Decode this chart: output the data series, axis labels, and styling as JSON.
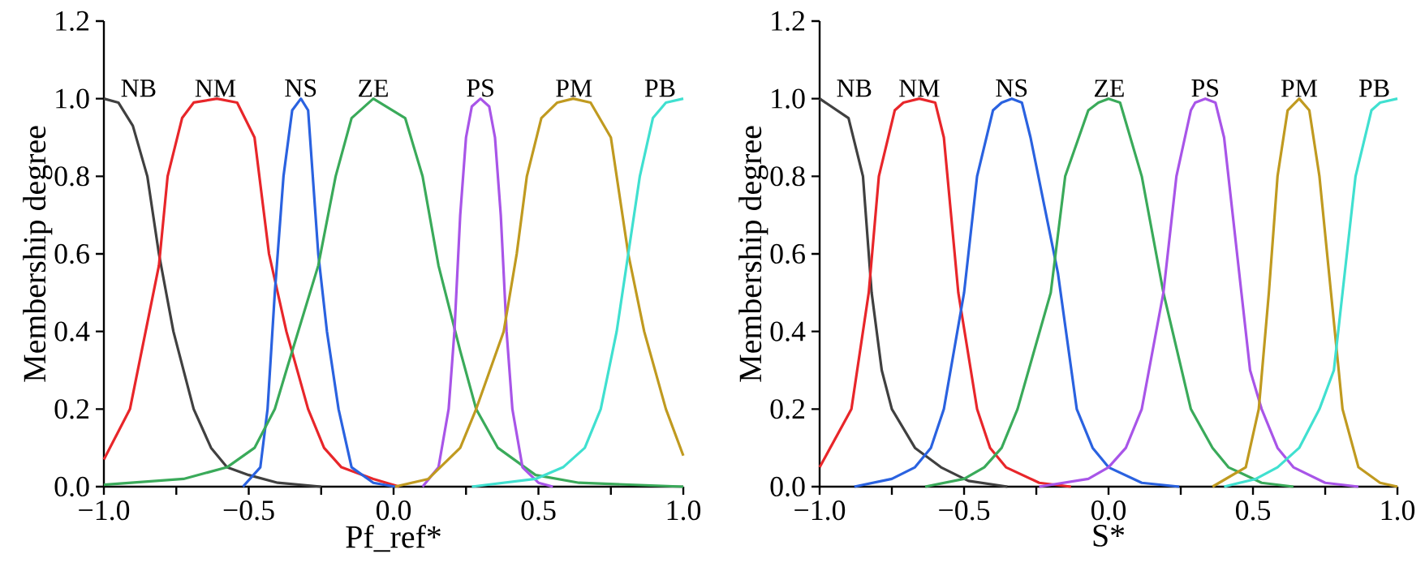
{
  "chart_data": [
    {
      "type": "line",
      "xlabel": "Pf_ref*",
      "ylabel": "Membership degree",
      "xlim": [
        -1.0,
        1.0
      ],
      "ylim": [
        0.0,
        1.2
      ],
      "xticks": [
        {
          "value": -1.0,
          "label": "−1.0"
        },
        {
          "value": -0.75,
          "label": null
        },
        {
          "value": -0.5,
          "label": "−0.5"
        },
        {
          "value": -0.25,
          "label": null
        },
        {
          "value": 0.0,
          "label": "0.0"
        },
        {
          "value": 0.25,
          "label": null
        },
        {
          "value": 0.5,
          "label": "0.5"
        },
        {
          "value": 0.75,
          "label": null
        },
        {
          "value": 1.0,
          "label": "1.0"
        }
      ],
      "yticks": [
        {
          "value": 0.0,
          "label": "0.0"
        },
        {
          "value": 0.2,
          "label": "0.2"
        },
        {
          "value": 0.4,
          "label": "0.4"
        },
        {
          "value": 0.6,
          "label": "0.6"
        },
        {
          "value": 0.8,
          "label": "0.8"
        },
        {
          "value": 1.0,
          "label": "1.0"
        },
        {
          "value": 1.2,
          "label": "1.2"
        }
      ],
      "series": [
        {
          "name": "NB",
          "color": "#404040",
          "x": [
            -1.0,
            -0.95,
            -0.9,
            -0.85,
            -0.81,
            -0.76,
            -0.69,
            -0.63,
            -0.575,
            -0.5,
            -0.4,
            -0.25
          ],
          "values": [
            1.0,
            0.99,
            0.93,
            0.8,
            0.6,
            0.4,
            0.2,
            0.1,
            0.05,
            0.03,
            0.01,
            0.0
          ]
        },
        {
          "name": "NM",
          "color": "#e8262a",
          "x": [
            -1.0,
            -0.91,
            -0.81,
            -0.78,
            -0.73,
            -0.69,
            -0.61,
            -0.54,
            -0.48,
            -0.43,
            -0.37,
            -0.295,
            -0.24,
            -0.18,
            -0.07,
            0.02
          ],
          "values": [
            0.07,
            0.2,
            0.57,
            0.8,
            0.95,
            0.99,
            1.0,
            0.99,
            0.9,
            0.6,
            0.4,
            0.2,
            0.1,
            0.05,
            0.02,
            0.0
          ]
        },
        {
          "name": "NS",
          "color": "#2a62e0",
          "x": [
            -0.52,
            -0.46,
            -0.435,
            -0.41,
            -0.38,
            -0.35,
            -0.32,
            -0.295,
            -0.26,
            -0.23,
            -0.19,
            -0.145,
            -0.07,
            0.005
          ],
          "values": [
            0.0,
            0.05,
            0.2,
            0.5,
            0.8,
            0.97,
            1.0,
            0.97,
            0.6,
            0.4,
            0.2,
            0.05,
            0.01,
            0.0
          ]
        },
        {
          "name": "ZE",
          "color": "#3aaa5a",
          "x": [
            -1.0,
            -0.725,
            -0.575,
            -0.48,
            -0.41,
            -0.37,
            -0.26,
            -0.2,
            -0.145,
            -0.07,
            0.04,
            0.1,
            0.155,
            0.23,
            0.285,
            0.36,
            0.49,
            0.64,
            1.0
          ],
          "values": [
            0.005,
            0.02,
            0.05,
            0.1,
            0.2,
            0.3,
            0.57,
            0.8,
            0.95,
            1.0,
            0.95,
            0.8,
            0.57,
            0.35,
            0.2,
            0.1,
            0.03,
            0.01,
            0.0
          ]
        },
        {
          "name": "PS",
          "color": "#a855e8",
          "x": [
            0.1,
            0.155,
            0.19,
            0.21,
            0.23,
            0.25,
            0.27,
            0.3,
            0.33,
            0.35,
            0.37,
            0.39,
            0.41,
            0.445,
            0.5,
            0.55
          ],
          "values": [
            0.0,
            0.05,
            0.2,
            0.4,
            0.7,
            0.9,
            0.98,
            1.0,
            0.98,
            0.9,
            0.7,
            0.4,
            0.2,
            0.05,
            0.01,
            0.0
          ]
        },
        {
          "name": "PM",
          "color": "#c09a20",
          "x": [
            0.005,
            0.12,
            0.23,
            0.285,
            0.38,
            0.425,
            0.46,
            0.51,
            0.565,
            0.62,
            0.68,
            0.75,
            0.81,
            0.865,
            0.94,
            1.0
          ],
          "values": [
            0.0,
            0.02,
            0.1,
            0.2,
            0.4,
            0.6,
            0.8,
            0.95,
            0.99,
            1.0,
            0.99,
            0.9,
            0.6,
            0.4,
            0.2,
            0.08
          ]
        },
        {
          "name": "PB",
          "color": "#40e0d0",
          "x": [
            0.27,
            0.49,
            0.585,
            0.66,
            0.715,
            0.77,
            0.81,
            0.85,
            0.895,
            0.94,
            1.0
          ],
          "values": [
            0.0,
            0.02,
            0.05,
            0.1,
            0.2,
            0.4,
            0.6,
            0.8,
            0.95,
            0.99,
            1.0
          ]
        }
      ]
    },
    {
      "type": "line",
      "xlabel": "S*",
      "ylabel": "Membership degree",
      "xlim": [
        -1.0,
        1.0
      ],
      "ylim": [
        0.0,
        1.2
      ],
      "xticks": [
        {
          "value": -1.0,
          "label": "−1.0"
        },
        {
          "value": -0.75,
          "label": null
        },
        {
          "value": -0.5,
          "label": "−0.5"
        },
        {
          "value": -0.25,
          "label": null
        },
        {
          "value": 0.0,
          "label": "0.0"
        },
        {
          "value": 0.25,
          "label": null
        },
        {
          "value": 0.5,
          "label": "0.5"
        },
        {
          "value": 0.75,
          "label": null
        },
        {
          "value": 1.0,
          "label": "1.0"
        }
      ],
      "yticks": [
        {
          "value": 0.0,
          "label": "0.0"
        },
        {
          "value": 0.2,
          "label": "0.2"
        },
        {
          "value": 0.4,
          "label": "0.4"
        },
        {
          "value": 0.6,
          "label": "0.6"
        },
        {
          "value": 0.8,
          "label": "0.8"
        },
        {
          "value": 1.0,
          "label": "1.0"
        },
        {
          "value": 1.2,
          "label": "1.2"
        }
      ],
      "series": [
        {
          "name": "NB",
          "color": "#404040",
          "x": [
            -1.0,
            -0.9,
            -0.85,
            -0.82,
            -0.785,
            -0.75,
            -0.67,
            -0.58,
            -0.485,
            -0.35
          ],
          "values": [
            1.0,
            0.95,
            0.8,
            0.5,
            0.3,
            0.2,
            0.1,
            0.05,
            0.015,
            0.0
          ]
        },
        {
          "name": "NM",
          "color": "#e8262a",
          "x": [
            -1.0,
            -0.89,
            -0.83,
            -0.795,
            -0.74,
            -0.71,
            -0.655,
            -0.6,
            -0.57,
            -0.52,
            -0.455,
            -0.41,
            -0.355,
            -0.24,
            -0.13
          ],
          "values": [
            0.05,
            0.2,
            0.5,
            0.8,
            0.97,
            0.99,
            1.0,
            0.99,
            0.9,
            0.5,
            0.2,
            0.1,
            0.05,
            0.01,
            0.0
          ]
        },
        {
          "name": "NS",
          "color": "#2a62e0",
          "x": [
            -0.88,
            -0.75,
            -0.67,
            -0.615,
            -0.57,
            -0.5,
            -0.455,
            -0.4,
            -0.37,
            -0.335,
            -0.3,
            -0.27,
            -0.175,
            -0.11,
            -0.055,
            0.0,
            0.115,
            0.245
          ],
          "values": [
            0.0,
            0.02,
            0.05,
            0.1,
            0.2,
            0.5,
            0.8,
            0.97,
            0.99,
            1.0,
            0.99,
            0.9,
            0.55,
            0.2,
            0.1,
            0.05,
            0.01,
            0.0
          ]
        },
        {
          "name": "ZE",
          "color": "#3aaa5a",
          "x": [
            -0.635,
            -0.5,
            -0.43,
            -0.37,
            -0.315,
            -0.2,
            -0.15,
            -0.07,
            -0.035,
            0.0,
            0.04,
            0.115,
            0.19,
            0.285,
            0.36,
            0.415,
            0.53,
            0.64
          ],
          "values": [
            0.0,
            0.02,
            0.05,
            0.1,
            0.2,
            0.5,
            0.8,
            0.97,
            0.99,
            1.0,
            0.99,
            0.8,
            0.5,
            0.2,
            0.1,
            0.05,
            0.01,
            0.0
          ]
        },
        {
          "name": "PS",
          "color": "#a855e8",
          "x": [
            -0.24,
            -0.07,
            0.0,
            0.06,
            0.115,
            0.19,
            0.235,
            0.285,
            0.3,
            0.335,
            0.37,
            0.4,
            0.46,
            0.49,
            0.53,
            0.585,
            0.64,
            0.75,
            0.865
          ],
          "values": [
            0.0,
            0.02,
            0.05,
            0.1,
            0.2,
            0.5,
            0.8,
            0.97,
            0.99,
            1.0,
            0.99,
            0.9,
            0.5,
            0.3,
            0.2,
            0.1,
            0.05,
            0.01,
            0.0
          ]
        },
        {
          "name": "PM",
          "color": "#c09a20",
          "x": [
            0.36,
            0.475,
            0.52,
            0.555,
            0.585,
            0.62,
            0.66,
            0.695,
            0.73,
            0.77,
            0.81,
            0.865,
            0.94,
            1.0
          ],
          "values": [
            0.0,
            0.05,
            0.2,
            0.5,
            0.8,
            0.97,
            1.0,
            0.97,
            0.8,
            0.5,
            0.2,
            0.05,
            0.01,
            0.0
          ]
        },
        {
          "name": "PB",
          "color": "#40e0d0",
          "x": [
            0.4,
            0.51,
            0.585,
            0.66,
            0.73,
            0.78,
            0.81,
            0.855,
            0.91,
            0.94,
            1.0
          ],
          "values": [
            0.0,
            0.02,
            0.05,
            0.1,
            0.2,
            0.3,
            0.5,
            0.8,
            0.97,
            0.99,
            1.0
          ]
        }
      ]
    }
  ]
}
